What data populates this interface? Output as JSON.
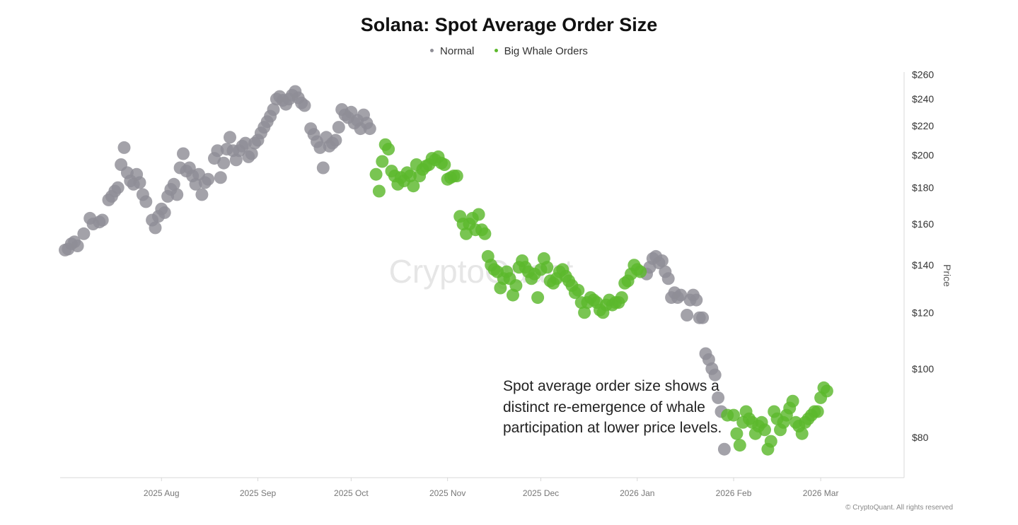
{
  "chart_data": {
    "type": "scatter",
    "title": "Solana: Spot Average Order Size",
    "ylabel": "Price",
    "y_scale": "log",
    "ylim": [
      72,
      262
    ],
    "xlim": [
      "2025-07-01",
      "2026-03-26"
    ],
    "x_ticks": [
      "2025 Aug",
      "2025 Sep",
      "2025 Oct",
      "2025 Nov",
      "2025 Dec",
      "2026 Jan",
      "2026 Feb",
      "2026 Mar"
    ],
    "y_ticks": [
      "$260",
      "$240",
      "$220",
      "$200",
      "$180",
      "$160",
      "$140",
      "$120",
      "$100",
      "$80"
    ],
    "watermark": "CryptoQuant",
    "series": [
      {
        "name": "Normal",
        "color": "#8f8e96",
        "points": [
          [
            "2025-07-01",
            147
          ],
          [
            "2025-07-02",
            147.5
          ],
          [
            "2025-07-03",
            150
          ],
          [
            "2025-07-04",
            151
          ],
          [
            "2025-07-05",
            149
          ],
          [
            "2025-07-07",
            155
          ],
          [
            "2025-07-09",
            163
          ],
          [
            "2025-07-10",
            160
          ],
          [
            "2025-07-12",
            161
          ],
          [
            "2025-07-13",
            162
          ],
          [
            "2025-07-15",
            173
          ],
          [
            "2025-07-16",
            175
          ],
          [
            "2025-07-17",
            178
          ],
          [
            "2025-07-18",
            180
          ],
          [
            "2025-07-19",
            194
          ],
          [
            "2025-07-20",
            205
          ],
          [
            "2025-07-21",
            189
          ],
          [
            "2025-07-22",
            184
          ],
          [
            "2025-07-23",
            182
          ],
          [
            "2025-07-24",
            188
          ],
          [
            "2025-07-25",
            183
          ],
          [
            "2025-07-26",
            176
          ],
          [
            "2025-07-27",
            172
          ],
          [
            "2025-07-29",
            162
          ],
          [
            "2025-07-30",
            158
          ],
          [
            "2025-07-31",
            164
          ],
          [
            "2025-08-01",
            168
          ],
          [
            "2025-08-02",
            166
          ],
          [
            "2025-08-03",
            175
          ],
          [
            "2025-08-04",
            179
          ],
          [
            "2025-08-05",
            182
          ],
          [
            "2025-08-06",
            176
          ],
          [
            "2025-08-07",
            192
          ],
          [
            "2025-08-08",
            201
          ],
          [
            "2025-08-09",
            190
          ],
          [
            "2025-08-10",
            192
          ],
          [
            "2025-08-11",
            187
          ],
          [
            "2025-08-12",
            182
          ],
          [
            "2025-08-13",
            188
          ],
          [
            "2025-08-14",
            176
          ],
          [
            "2025-08-15",
            183
          ],
          [
            "2025-08-16",
            185
          ],
          [
            "2025-08-18",
            198
          ],
          [
            "2025-08-19",
            203
          ],
          [
            "2025-08-20",
            186
          ],
          [
            "2025-08-21",
            195
          ],
          [
            "2025-08-22",
            204
          ],
          [
            "2025-08-23",
            212
          ],
          [
            "2025-08-24",
            203
          ],
          [
            "2025-08-25",
            197
          ],
          [
            "2025-08-26",
            203
          ],
          [
            "2025-08-27",
            206
          ],
          [
            "2025-08-28",
            208
          ],
          [
            "2025-08-29",
            199
          ],
          [
            "2025-08-30",
            201
          ],
          [
            "2025-08-31",
            208
          ],
          [
            "2025-09-01",
            210
          ],
          [
            "2025-09-02",
            215
          ],
          [
            "2025-09-03",
            219
          ],
          [
            "2025-09-04",
            223
          ],
          [
            "2025-09-05",
            227
          ],
          [
            "2025-09-06",
            232
          ],
          [
            "2025-09-07",
            240
          ],
          [
            "2025-09-08",
            242
          ],
          [
            "2025-09-09",
            239
          ],
          [
            "2025-09-10",
            236
          ],
          [
            "2025-09-11",
            240
          ],
          [
            "2025-09-12",
            243
          ],
          [
            "2025-09-13",
            246
          ],
          [
            "2025-09-14",
            241
          ],
          [
            "2025-09-15",
            237
          ],
          [
            "2025-09-16",
            235
          ],
          [
            "2025-09-18",
            218
          ],
          [
            "2025-09-19",
            214
          ],
          [
            "2025-09-20",
            209
          ],
          [
            "2025-09-21",
            205
          ],
          [
            "2025-09-22",
            192
          ],
          [
            "2025-09-23",
            212
          ],
          [
            "2025-09-24",
            206
          ],
          [
            "2025-09-25",
            208
          ],
          [
            "2025-09-26",
            210
          ],
          [
            "2025-09-27",
            219
          ],
          [
            "2025-09-28",
            232
          ],
          [
            "2025-09-29",
            228
          ],
          [
            "2025-09-30",
            226
          ],
          [
            "2025-10-01",
            230
          ],
          [
            "2025-10-02",
            222
          ],
          [
            "2025-10-03",
            224
          ],
          [
            "2025-10-04",
            218
          ],
          [
            "2025-10-05",
            228
          ],
          [
            "2025-10-06",
            222
          ],
          [
            "2025-10-07",
            218
          ],
          [
            "2026-01-04",
            136
          ],
          [
            "2026-01-05",
            139
          ],
          [
            "2026-01-06",
            143
          ],
          [
            "2026-01-07",
            144
          ],
          [
            "2026-01-08",
            141
          ],
          [
            "2026-01-09",
            142
          ],
          [
            "2026-01-10",
            137
          ],
          [
            "2026-01-11",
            134
          ],
          [
            "2026-01-12",
            126
          ],
          [
            "2026-01-13",
            128
          ],
          [
            "2026-01-14",
            126
          ],
          [
            "2026-01-15",
            127
          ],
          [
            "2026-01-17",
            119
          ],
          [
            "2026-01-18",
            125
          ],
          [
            "2026-01-19",
            127
          ],
          [
            "2026-01-20",
            125
          ],
          [
            "2026-01-21",
            118
          ],
          [
            "2026-01-22",
            118
          ],
          [
            "2026-01-23",
            105
          ],
          [
            "2026-01-24",
            103
          ],
          [
            "2026-01-25",
            100
          ],
          [
            "2026-01-26",
            98
          ],
          [
            "2026-01-27",
            91
          ],
          [
            "2026-01-28",
            87
          ],
          [
            "2026-01-29",
            77
          ]
        ]
      },
      {
        "name": "Big Whale Orders",
        "color": "#5cb82c",
        "points": [
          [
            "2025-10-09",
            188
          ],
          [
            "2025-10-10",
            178
          ],
          [
            "2025-10-11",
            196
          ],
          [
            "2025-10-12",
            207
          ],
          [
            "2025-10-13",
            204
          ],
          [
            "2025-10-14",
            190
          ],
          [
            "2025-10-15",
            187
          ],
          [
            "2025-10-16",
            182
          ],
          [
            "2025-10-17",
            186
          ],
          [
            "2025-10-18",
            184
          ],
          [
            "2025-10-19",
            189
          ],
          [
            "2025-10-20",
            187
          ],
          [
            "2025-10-21",
            181
          ],
          [
            "2025-10-22",
            194
          ],
          [
            "2025-10-23",
            187
          ],
          [
            "2025-10-24",
            191
          ],
          [
            "2025-10-25",
            193
          ],
          [
            "2025-10-26",
            194
          ],
          [
            "2025-10-27",
            198
          ],
          [
            "2025-10-28",
            197
          ],
          [
            "2025-10-29",
            199
          ],
          [
            "2025-10-30",
            195
          ],
          [
            "2025-10-31",
            194
          ],
          [
            "2025-11-01",
            185
          ],
          [
            "2025-11-02",
            186
          ],
          [
            "2025-11-03",
            187
          ],
          [
            "2025-11-04",
            187
          ],
          [
            "2025-11-05",
            164
          ],
          [
            "2025-11-06",
            160
          ],
          [
            "2025-11-07",
            155
          ],
          [
            "2025-11-08",
            160
          ],
          [
            "2025-11-09",
            163
          ],
          [
            "2025-11-10",
            157
          ],
          [
            "2025-11-11",
            165
          ],
          [
            "2025-11-12",
            157
          ],
          [
            "2025-11-13",
            155
          ],
          [
            "2025-11-14",
            144
          ],
          [
            "2025-11-15",
            140
          ],
          [
            "2025-11-16",
            138
          ],
          [
            "2025-11-17",
            137
          ],
          [
            "2025-11-18",
            130
          ],
          [
            "2025-11-19",
            134
          ],
          [
            "2025-11-20",
            137
          ],
          [
            "2025-11-21",
            134
          ],
          [
            "2025-11-22",
            127
          ],
          [
            "2025-11-23",
            131
          ],
          [
            "2025-11-24",
            139
          ],
          [
            "2025-11-25",
            142
          ],
          [
            "2025-11-26",
            139
          ],
          [
            "2025-11-27",
            137
          ],
          [
            "2025-11-28",
            134
          ],
          [
            "2025-11-29",
            136
          ],
          [
            "2025-11-30",
            126
          ],
          [
            "2025-12-01",
            138
          ],
          [
            "2025-12-02",
            143
          ],
          [
            "2025-12-03",
            139
          ],
          [
            "2025-12-04",
            133
          ],
          [
            "2025-12-05",
            132
          ],
          [
            "2025-12-06",
            134
          ],
          [
            "2025-12-07",
            137
          ],
          [
            "2025-12-08",
            138
          ],
          [
            "2025-12-09",
            135
          ],
          [
            "2025-12-10",
            133
          ],
          [
            "2025-12-11",
            131
          ],
          [
            "2025-12-12",
            128
          ],
          [
            "2025-12-13",
            129
          ],
          [
            "2025-12-14",
            124
          ],
          [
            "2025-12-15",
            120
          ],
          [
            "2025-12-16",
            124
          ],
          [
            "2025-12-17",
            126
          ],
          [
            "2025-12-18",
            125
          ],
          [
            "2025-12-19",
            124
          ],
          [
            "2025-12-20",
            121
          ],
          [
            "2025-12-21",
            120
          ],
          [
            "2025-12-22",
            123
          ],
          [
            "2025-12-23",
            125
          ],
          [
            "2025-12-24",
            123
          ],
          [
            "2025-12-25",
            124
          ],
          [
            "2025-12-26",
            124
          ],
          [
            "2025-12-27",
            126
          ],
          [
            "2025-12-28",
            132
          ],
          [
            "2025-12-29",
            133
          ],
          [
            "2025-12-30",
            136
          ],
          [
            "2025-12-31",
            140
          ],
          [
            "2026-01-01",
            138
          ],
          [
            "2026-01-02",
            137
          ],
          [
            "2026-01-30",
            86
          ],
          [
            "2026-02-01",
            86
          ],
          [
            "2026-02-02",
            81
          ],
          [
            "2026-02-03",
            78
          ],
          [
            "2026-02-04",
            84
          ],
          [
            "2026-02-05",
            87
          ],
          [
            "2026-02-06",
            85
          ],
          [
            "2026-02-07",
            84
          ],
          [
            "2026-02-08",
            81
          ],
          [
            "2026-02-09",
            83
          ],
          [
            "2026-02-10",
            84
          ],
          [
            "2026-02-11",
            82
          ],
          [
            "2026-02-12",
            77
          ],
          [
            "2026-02-13",
            79
          ],
          [
            "2026-02-14",
            87
          ],
          [
            "2026-02-15",
            85
          ],
          [
            "2026-02-16",
            82
          ],
          [
            "2026-02-17",
            84
          ],
          [
            "2026-02-18",
            86
          ],
          [
            "2026-02-19",
            88
          ],
          [
            "2026-02-20",
            90
          ],
          [
            "2026-02-21",
            84
          ],
          [
            "2026-02-22",
            83
          ],
          [
            "2026-02-23",
            81
          ],
          [
            "2026-02-24",
            84
          ],
          [
            "2026-02-25",
            85
          ],
          [
            "2026-02-26",
            86
          ],
          [
            "2026-02-27",
            87
          ],
          [
            "2026-02-28",
            87
          ],
          [
            "2026-03-01",
            91
          ],
          [
            "2026-03-02",
            94
          ],
          [
            "2026-03-03",
            93
          ]
        ]
      }
    ],
    "annotation": "Spot average order size shows a distinct re-emergence of whale participation at lower price levels.",
    "copyright": "© CryptoQuant. All rights reserved"
  }
}
